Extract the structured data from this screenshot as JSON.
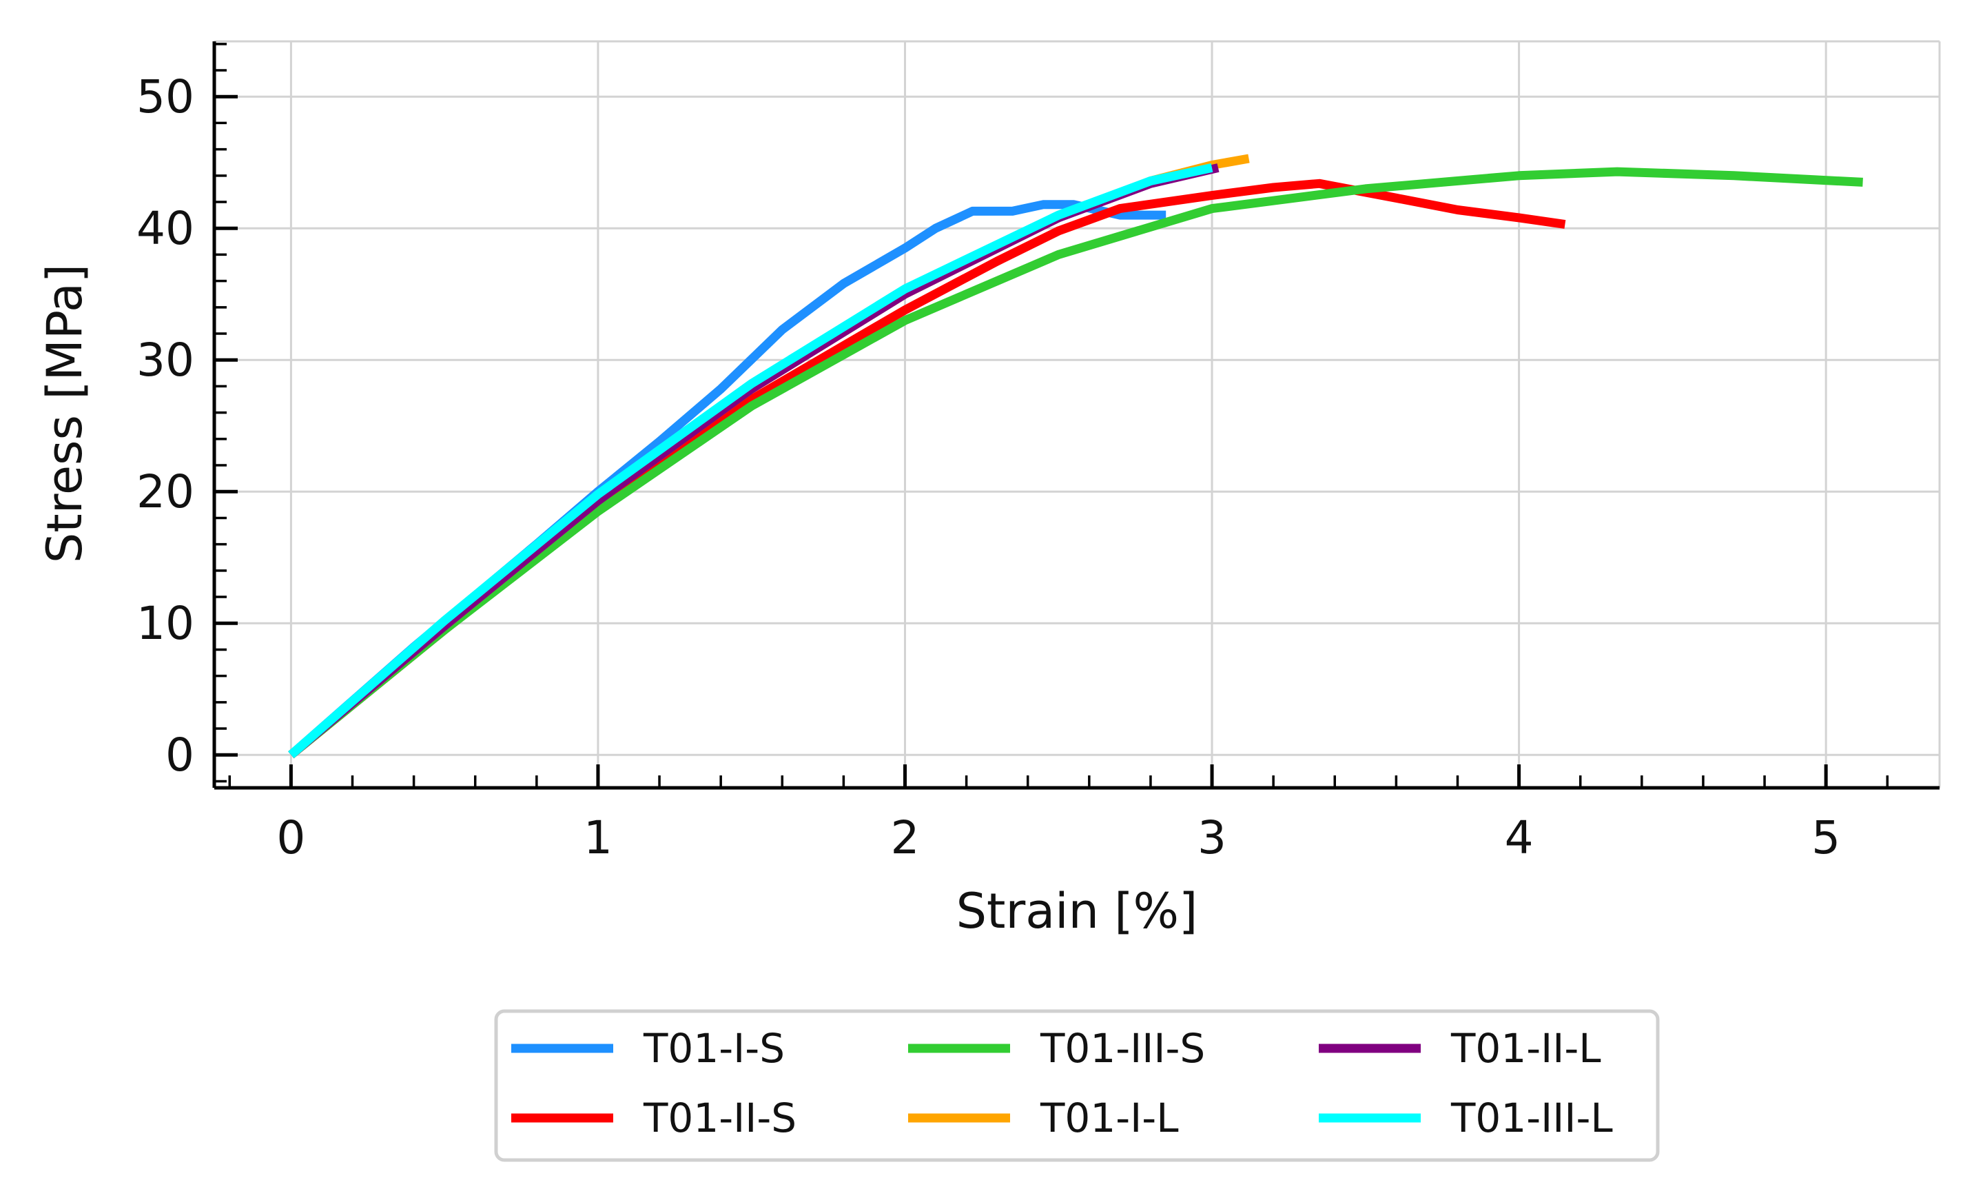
{
  "chart_data": {
    "type": "line",
    "title": "",
    "xlabel": "Strain [%]",
    "ylabel": "Stress [MPa]",
    "xlim": [
      -0.25,
      5.37
    ],
    "ylim": [
      -2.5,
      54.2
    ],
    "xticks": [
      0,
      1,
      2,
      3,
      4,
      5
    ],
    "yticks": [
      0,
      10,
      20,
      30,
      40,
      50
    ],
    "grid": true,
    "legend_position": "bottom-center",
    "legend_columns": 3,
    "series": [
      {
        "name": "T01-I-S",
        "color": "#1E90FF",
        "x": [
          0,
          0.4,
          0.8,
          1.0,
          1.2,
          1.4,
          1.6,
          1.8,
          2.0,
          2.1,
          2.22,
          2.35,
          2.45,
          2.55,
          2.7,
          2.85
        ],
        "y": [
          0,
          8.2,
          16.0,
          20.0,
          23.8,
          27.8,
          32.3,
          35.8,
          38.5,
          40.0,
          41.3,
          41.3,
          41.8,
          41.8,
          41.0,
          41.0
        ]
      },
      {
        "name": "T01-II-S",
        "color": "#FF0000",
        "x": [
          0,
          0.5,
          1.0,
          1.5,
          2.0,
          2.3,
          2.5,
          2.7,
          3.0,
          3.2,
          3.35,
          3.6,
          3.8,
          4.0,
          4.15
        ],
        "y": [
          0,
          9.5,
          19.0,
          27.0,
          33.8,
          37.5,
          39.8,
          41.5,
          42.5,
          43.1,
          43.4,
          42.3,
          41.4,
          40.8,
          40.3
        ]
      },
      {
        "name": "T01-III-S",
        "color": "#32CD32",
        "x": [
          0,
          0.5,
          1.0,
          1.5,
          2.0,
          2.5,
          3.0,
          3.5,
          4.0,
          4.32,
          4.7,
          5.12
        ],
        "y": [
          0,
          9.5,
          18.5,
          26.5,
          33.0,
          38.0,
          41.5,
          43.0,
          44.0,
          44.3,
          44.0,
          43.5
        ]
      },
      {
        "name": "T01-I-L",
        "color": "#FFA500",
        "x": [
          0,
          0.5,
          1.0,
          1.5,
          2.0,
          2.5,
          2.8,
          3.0,
          3.12
        ],
        "y": [
          0,
          9.8,
          19.3,
          27.8,
          35.0,
          40.8,
          43.6,
          44.8,
          45.3
        ]
      },
      {
        "name": "T01-II-L",
        "color": "#800080",
        "x": [
          0,
          0.5,
          1.0,
          1.5,
          2.0,
          2.5,
          2.8,
          3.02
        ],
        "y": [
          0,
          9.8,
          19.3,
          27.8,
          35.0,
          40.8,
          43.4,
          44.6
        ]
      },
      {
        "name": "T01-III-L",
        "color": "#00FFFF",
        "x": [
          0,
          0.5,
          1.0,
          1.5,
          2.0,
          2.5,
          2.8,
          3.0
        ],
        "y": [
          0,
          10.2,
          19.8,
          28.2,
          35.4,
          41.0,
          43.6,
          44.6
        ]
      }
    ],
    "legend": [
      {
        "label": "T01-I-S",
        "color": "#1E90FF"
      },
      {
        "label": "T01-II-S",
        "color": "#FF0000"
      },
      {
        "label": "T01-III-S",
        "color": "#32CD32"
      },
      {
        "label": "T01-I-L",
        "color": "#FFA500"
      },
      {
        "label": "T01-II-L",
        "color": "#800080"
      },
      {
        "label": "T01-III-L",
        "color": "#00FFFF"
      }
    ]
  }
}
